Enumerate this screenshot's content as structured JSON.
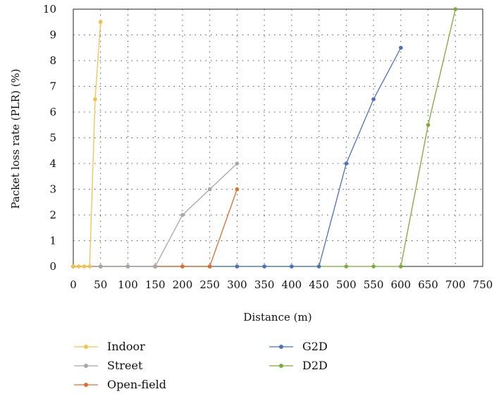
{
  "chart_data": {
    "type": "line",
    "title": "",
    "xlabel": "Distance (m)",
    "ylabel": "Packet loss rate (PLR) (%)",
    "xlim": [
      0,
      750
    ],
    "ylim": [
      0,
      10
    ],
    "x_ticks": [
      0,
      50,
      100,
      150,
      200,
      250,
      300,
      350,
      400,
      450,
      500,
      550,
      600,
      650,
      700,
      750
    ],
    "y_ticks": [
      0,
      1,
      2,
      3,
      4,
      5,
      6,
      7,
      8,
      9,
      10
    ],
    "grid": "dotted",
    "legend_position": "bottom",
    "series": [
      {
        "name": "Indoor",
        "color": "#f7c04a",
        "points": [
          [
            0,
            0
          ],
          [
            10,
            0
          ],
          [
            20,
            0
          ],
          [
            30,
            0
          ],
          [
            40,
            6.5
          ],
          [
            50,
            9.5
          ]
        ]
      },
      {
        "name": "Street",
        "color": "#a6a6a6",
        "points": [
          [
            0,
            0
          ],
          [
            50,
            0
          ],
          [
            100,
            0
          ],
          [
            150,
            0
          ],
          [
            200,
            2
          ],
          [
            250,
            3
          ],
          [
            300,
            4
          ]
        ]
      },
      {
        "name": "Open-field",
        "color": "#e36c2a",
        "points": [
          [
            0,
            0
          ],
          [
            50,
            0
          ],
          [
            100,
            0
          ],
          [
            150,
            0
          ],
          [
            200,
            0
          ],
          [
            250,
            0
          ],
          [
            300,
            3
          ]
        ]
      },
      {
        "name": "G2D",
        "color": "#4a6fbf",
        "points": [
          [
            0,
            0
          ],
          [
            50,
            0
          ],
          [
            100,
            0
          ],
          [
            150,
            0
          ],
          [
            200,
            0
          ],
          [
            250,
            0
          ],
          [
            300,
            0
          ],
          [
            350,
            0
          ],
          [
            400,
            0
          ],
          [
            450,
            0
          ],
          [
            500,
            4
          ],
          [
            550,
            6.5
          ],
          [
            600,
            8.5
          ]
        ]
      },
      {
        "name": "D2D",
        "color": "#7aab33",
        "points": [
          [
            0,
            0
          ],
          [
            50,
            0
          ],
          [
            100,
            0
          ],
          [
            150,
            0
          ],
          [
            200,
            0
          ],
          [
            250,
            0
          ],
          [
            300,
            0
          ],
          [
            350,
            0
          ],
          [
            400,
            0
          ],
          [
            450,
            0
          ],
          [
            500,
            0
          ],
          [
            550,
            0
          ],
          [
            600,
            0
          ],
          [
            650,
            5.5
          ],
          [
            700,
            10
          ]
        ]
      }
    ]
  }
}
